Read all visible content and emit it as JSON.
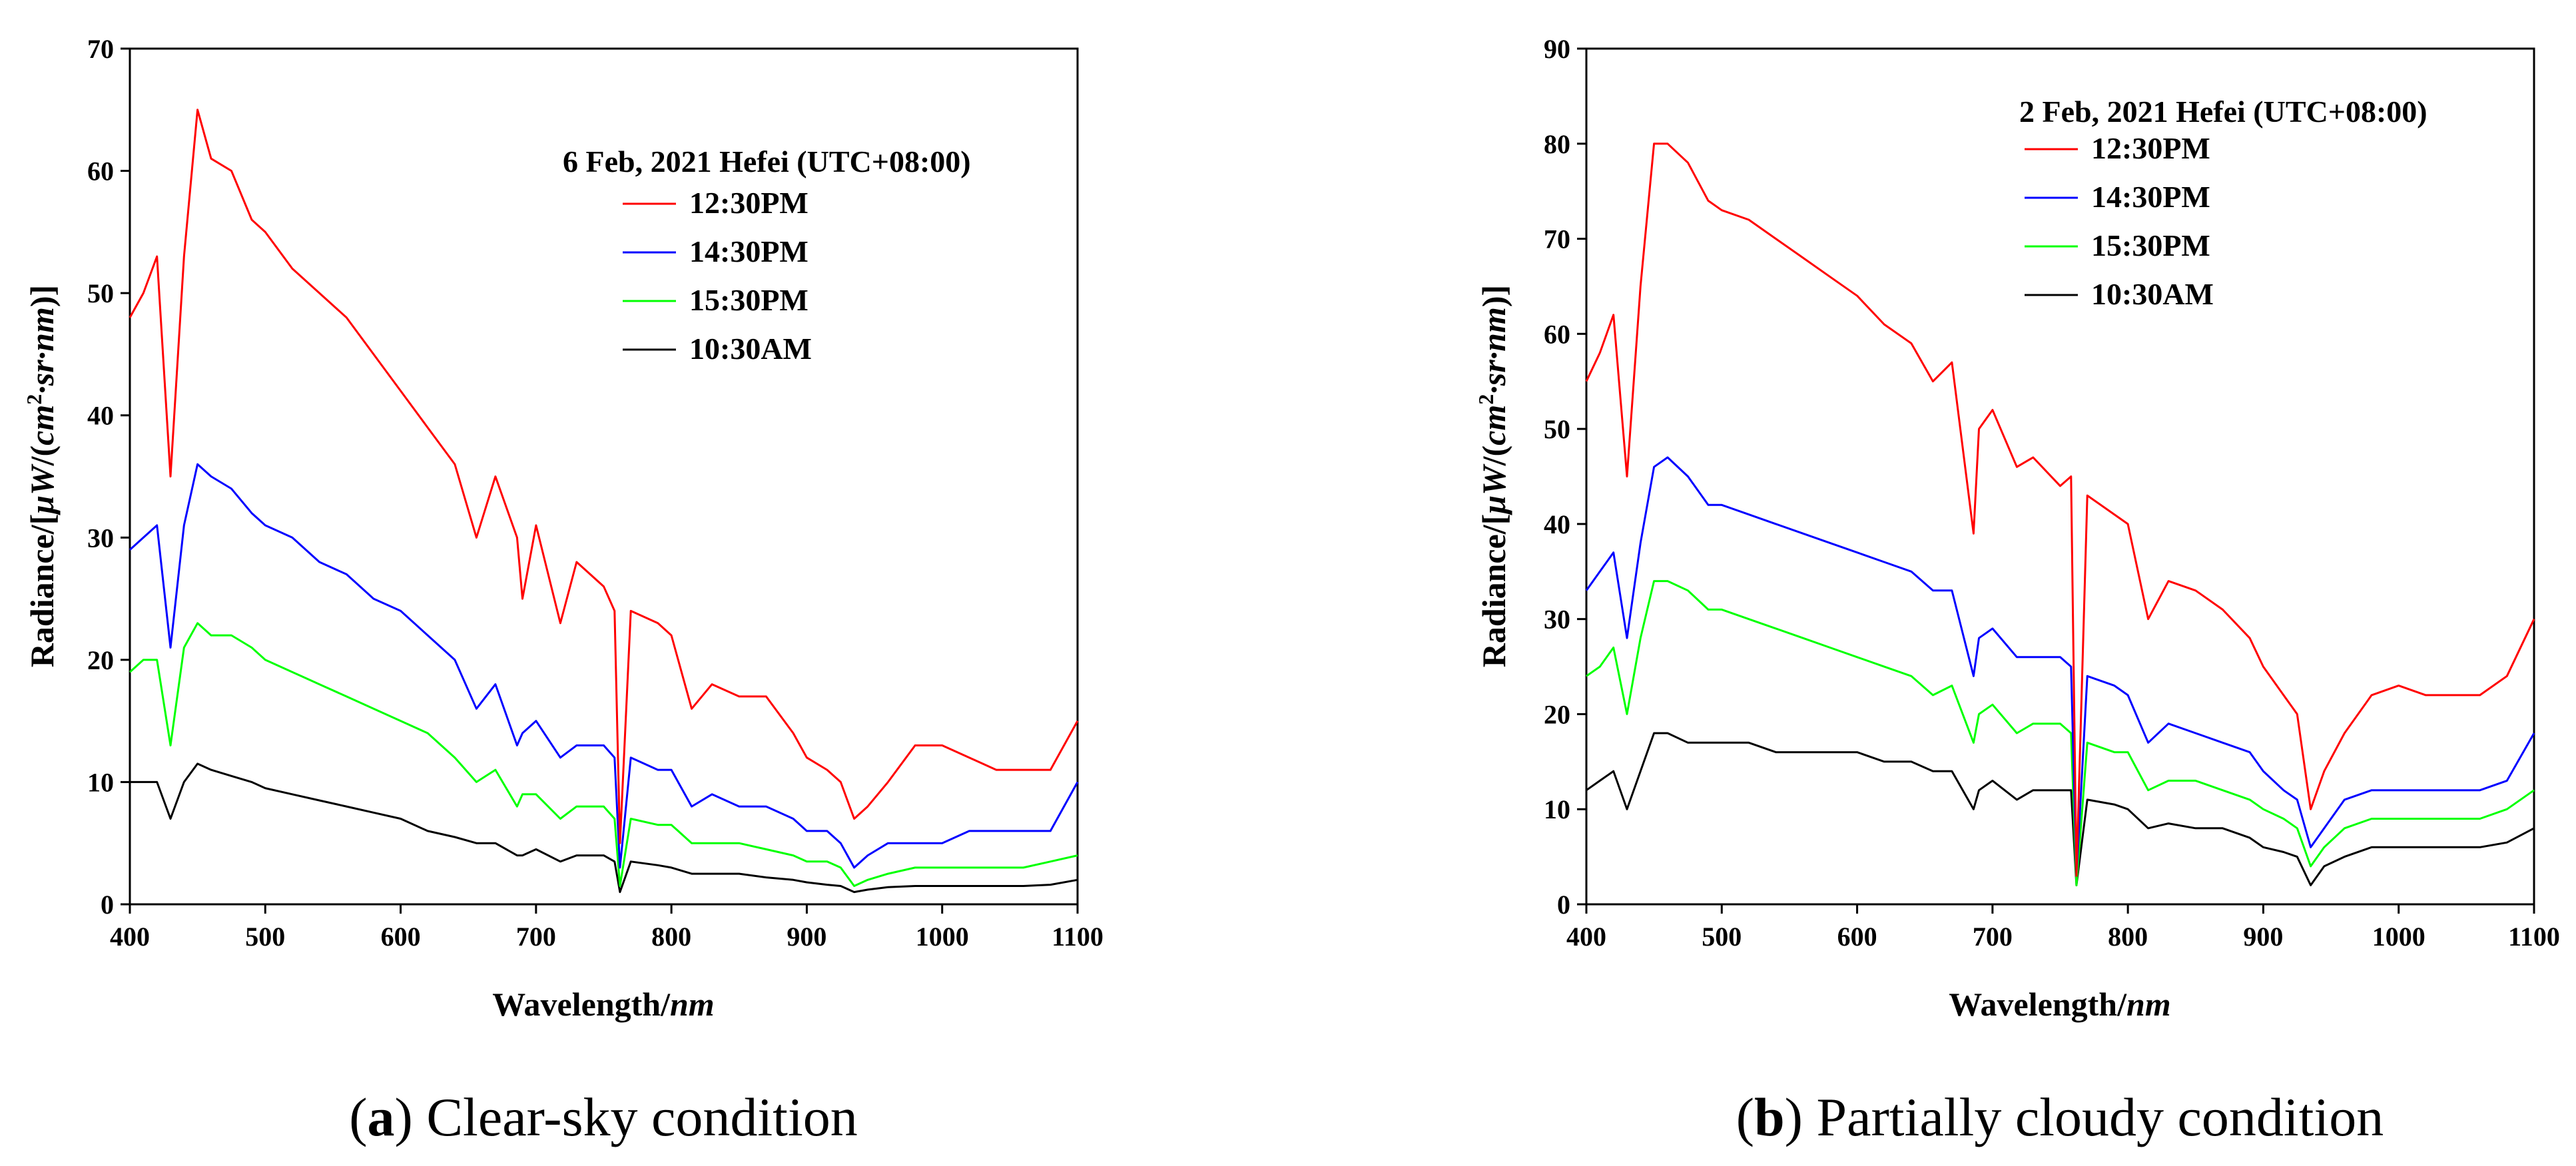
{
  "figure": {
    "panels": [
      {
        "caption_letter": "a",
        "caption_text": " Clear-sky condition",
        "legend_title": "6 Feb, 2021 Hefei (UTC+08:00)",
        "ylabel_prefix": "Radiance/[",
        "ylabel_mu_w": "μW",
        "ylabel_slash": "/(",
        "ylabel_cm": "cm",
        "ylabel_sup": "2",
        "ylabel_sr": "·sr·nm",
        "ylabel_suffix": ")]",
        "xlabel_prefix": "Wavelength/",
        "xlabel_unit": "nm"
      },
      {
        "caption_letter": "b",
        "caption_text": " Partially cloudy condition",
        "legend_title": "2 Feb, 2021 Hefei (UTC+08:00)",
        "ylabel_prefix": "Radiance/[",
        "ylabel_mu_w": "μW",
        "ylabel_slash": "/(",
        "ylabel_cm": "cm",
        "ylabel_sup": "2",
        "ylabel_sr": "·sr·nm",
        "ylabel_suffix": ")]",
        "xlabel_prefix": "Wavelength/",
        "xlabel_unit": "nm"
      }
    ]
  },
  "chart_data": [
    {
      "type": "line",
      "title": "6 Feb, 2021 Hefei (UTC+08:00)",
      "xlabel": "Wavelength/nm",
      "ylabel": "Radiance/[μW/(cm²·sr·nm)]",
      "xlim": [
        400,
        1100
      ],
      "ylim": [
        0,
        70
      ],
      "xticks": [
        400,
        500,
        600,
        700,
        800,
        900,
        1000,
        1100
      ],
      "yticks": [
        0,
        10,
        20,
        30,
        40,
        50,
        60,
        70
      ],
      "legend_position": "top-right",
      "grid": false,
      "x": [
        400,
        410,
        420,
        430,
        440,
        450,
        460,
        475,
        490,
        500,
        520,
        540,
        560,
        580,
        600,
        620,
        640,
        656,
        670,
        686,
        690,
        700,
        718,
        730,
        750,
        758,
        762,
        770,
        790,
        800,
        815,
        830,
        850,
        870,
        890,
        900,
        915,
        925,
        935,
        945,
        960,
        980,
        1000,
        1020,
        1040,
        1060,
        1080,
        1100
      ],
      "series": [
        {
          "name": "12:30PM",
          "color": "#ff0000",
          "values": [
            48,
            50,
            53,
            35,
            53,
            65,
            61,
            60,
            56,
            55,
            52,
            50,
            48,
            45,
            42,
            39,
            36,
            30,
            35,
            30,
            25,
            31,
            23,
            28,
            26,
            24,
            5,
            24,
            23,
            22,
            16,
            18,
            17,
            17,
            14,
            12,
            11,
            10,
            7,
            8,
            10,
            13,
            13,
            12,
            11,
            11,
            11,
            15
          ]
        },
        {
          "name": "14:30PM",
          "color": "#0000ff",
          "values": [
            29,
            30,
            31,
            21,
            31,
            36,
            35,
            34,
            32,
            31,
            30,
            28,
            27,
            25,
            24,
            22,
            20,
            16,
            18,
            13,
            14,
            15,
            12,
            13,
            13,
            12,
            3,
            12,
            11,
            11,
            8,
            9,
            8,
            8,
            7,
            6,
            6,
            5,
            3,
            4,
            5,
            5,
            5,
            6,
            6,
            6,
            6,
            10
          ]
        },
        {
          "name": "15:30PM",
          "color": "#00ff00",
          "values": [
            19,
            20,
            20,
            13,
            21,
            23,
            22,
            22,
            21,
            20,
            19,
            18,
            17,
            16,
            15,
            14,
            12,
            10,
            11,
            8,
            9,
            9,
            7,
            8,
            8,
            7,
            1.5,
            7,
            6.5,
            6.5,
            5,
            5,
            5,
            4.5,
            4,
            3.5,
            3.5,
            3,
            1.5,
            2,
            2.5,
            3,
            3,
            3,
            3,
            3,
            3.5,
            4
          ]
        },
        {
          "name": "10:30AM",
          "color": "#000000",
          "values": [
            10,
            10,
            10,
            7,
            10,
            11.5,
            11,
            10.5,
            10,
            9.5,
            9,
            8.5,
            8,
            7.5,
            7,
            6,
            5.5,
            5,
            5,
            4,
            4,
            4.5,
            3.5,
            4,
            4,
            3.5,
            1,
            3.5,
            3.2,
            3,
            2.5,
            2.5,
            2.5,
            2.2,
            2,
            1.8,
            1.6,
            1.5,
            1,
            1.2,
            1.4,
            1.5,
            1.5,
            1.5,
            1.5,
            1.5,
            1.6,
            2
          ]
        }
      ]
    },
    {
      "type": "line",
      "title": "2 Feb, 2021 Hefei (UTC+08:00)",
      "xlabel": "Wavelength/nm",
      "ylabel": "Radiance/[μW/(cm²·sr·nm)]",
      "xlim": [
        400,
        1100
      ],
      "ylim": [
        0,
        90
      ],
      "xticks": [
        400,
        500,
        600,
        700,
        800,
        900,
        1000,
        1100
      ],
      "yticks": [
        0,
        10,
        20,
        30,
        40,
        50,
        60,
        70,
        80,
        90
      ],
      "legend_position": "top-right",
      "grid": false,
      "x": [
        400,
        410,
        420,
        430,
        440,
        450,
        460,
        475,
        490,
        500,
        520,
        540,
        560,
        580,
        600,
        620,
        640,
        656,
        670,
        686,
        690,
        700,
        718,
        730,
        750,
        758,
        762,
        770,
        790,
        800,
        815,
        830,
        850,
        870,
        890,
        900,
        915,
        925,
        935,
        945,
        960,
        980,
        1000,
        1020,
        1040,
        1060,
        1080,
        1100
      ],
      "series": [
        {
          "name": "12:30PM",
          "color": "#ff0000",
          "values": [
            55,
            58,
            62,
            45,
            65,
            80,
            80,
            78,
            74,
            73,
            72,
            70,
            68,
            66,
            64,
            61,
            59,
            55,
            57,
            39,
            50,
            52,
            46,
            47,
            44,
            45,
            3,
            43,
            41,
            40,
            30,
            34,
            33,
            31,
            28,
            25,
            22,
            20,
            10,
            14,
            18,
            22,
            23,
            22,
            22,
            22,
            24,
            30
          ]
        },
        {
          "name": "14:30PM",
          "color": "#0000ff",
          "values": [
            33,
            35,
            37,
            28,
            38,
            46,
            47,
            45,
            42,
            42,
            41,
            40,
            39,
            38,
            37,
            36,
            35,
            33,
            33,
            24,
            28,
            29,
            26,
            26,
            26,
            25,
            3,
            24,
            23,
            22,
            17,
            19,
            18,
            17,
            16,
            14,
            12,
            11,
            6,
            8,
            11,
            12,
            12,
            12,
            12,
            12,
            13,
            18
          ]
        },
        {
          "name": "15:30PM",
          "color": "#00ff00",
          "values": [
            24,
            25,
            27,
            20,
            28,
            34,
            34,
            33,
            31,
            31,
            30,
            29,
            28,
            27,
            26,
            25,
            24,
            22,
            23,
            17,
            20,
            21,
            18,
            19,
            19,
            18,
            2,
            17,
            16,
            16,
            12,
            13,
            13,
            12,
            11,
            10,
            9,
            8,
            4,
            6,
            8,
            9,
            9,
            9,
            9,
            9,
            10,
            12
          ]
        },
        {
          "name": "10:30AM",
          "color": "#000000",
          "values": [
            12,
            13,
            14,
            10,
            14,
            18,
            18,
            17,
            17,
            17,
            17,
            16,
            16,
            16,
            16,
            15,
            15,
            14,
            14,
            10,
            12,
            13,
            11,
            12,
            12,
            12,
            2,
            11,
            10.5,
            10,
            8,
            8.5,
            8,
            8,
            7,
            6,
            5.5,
            5,
            2,
            4,
            5,
            6,
            6,
            6,
            6,
            6,
            6.5,
            8
          ]
        }
      ]
    }
  ]
}
